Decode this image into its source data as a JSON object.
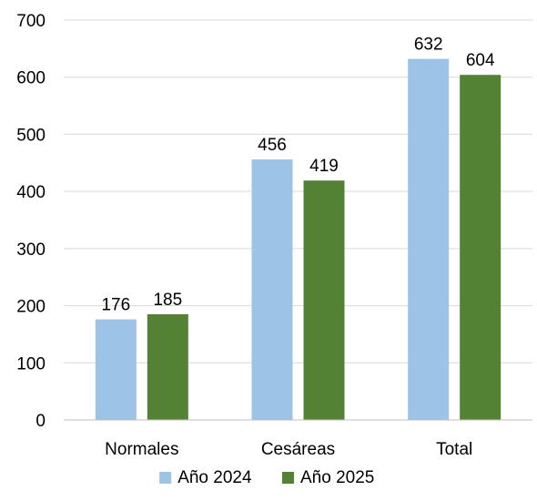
{
  "chart_data": {
    "type": "bar",
    "categories": [
      "Normales",
      "Cesáreas",
      "Total"
    ],
    "series": [
      {
        "name": "Año 2024",
        "values": [
          176,
          456,
          632
        ],
        "color": "#9dc3e6"
      },
      {
        "name": "Año 2025",
        "values": [
          185,
          419,
          604
        ],
        "color": "#548235"
      }
    ],
    "ylim": [
      0,
      700
    ],
    "yticks": [
      0,
      100,
      200,
      300,
      400,
      500,
      600,
      700
    ],
    "grid": true,
    "legend": "bottom",
    "data_labels": true
  }
}
